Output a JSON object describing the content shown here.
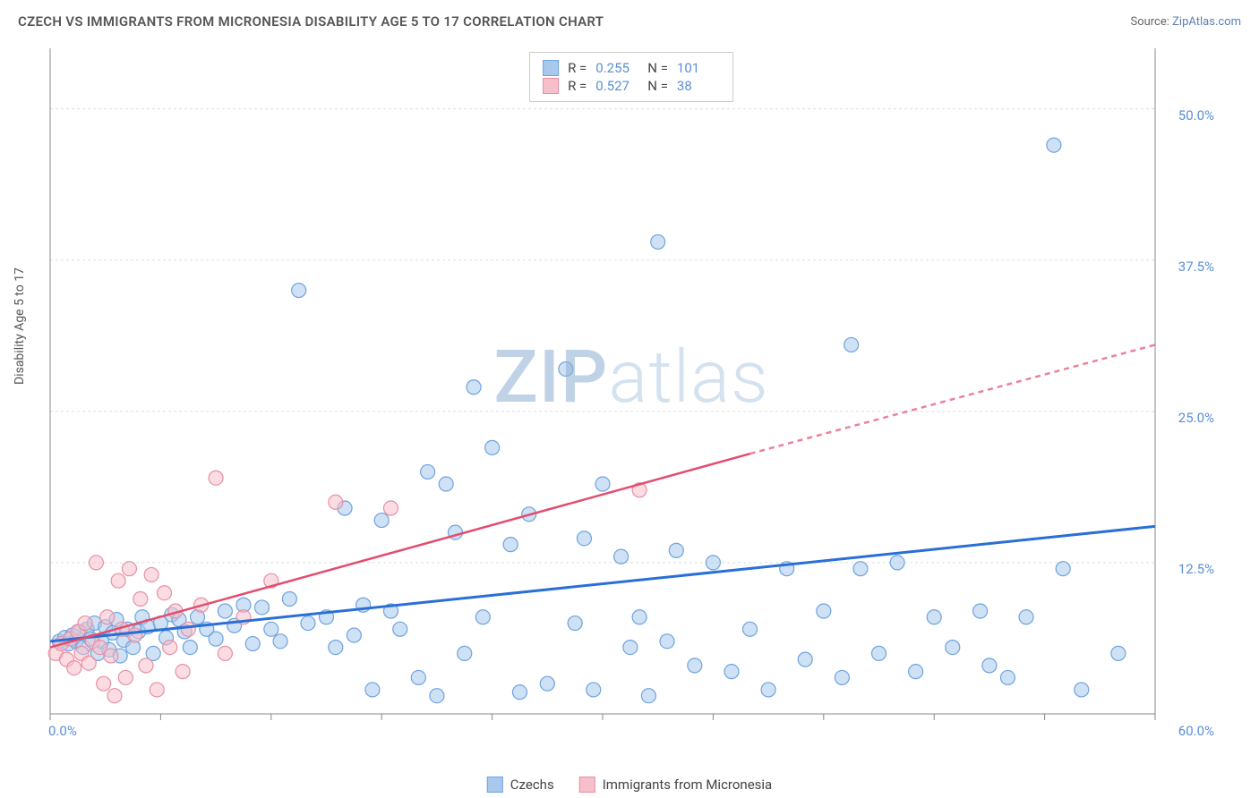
{
  "header": {
    "title": "CZECH VS IMMIGRANTS FROM MICRONESIA DISABILITY AGE 5 TO 17 CORRELATION CHART",
    "source_prefix": "Source: ",
    "source_link": "ZipAtlas.com"
  },
  "watermark": {
    "zip": "ZIP",
    "atlas": "atlas"
  },
  "chart": {
    "type": "scatter",
    "ylabel": "Disability Age 5 to 17",
    "xlim": [
      0,
      60
    ],
    "ylim": [
      0,
      55
    ],
    "x_ticks": [
      0,
      6,
      12,
      18,
      24,
      30,
      36,
      42,
      48,
      54,
      60
    ],
    "x_tick_labels": {
      "0": "0.0%",
      "60": "60.0%"
    },
    "y_gridlines": [
      12.5,
      25.0,
      37.5,
      50.0
    ],
    "y_tick_labels": [
      "12.5%",
      "25.0%",
      "37.5%",
      "50.0%"
    ],
    "background_color": "#ffffff",
    "grid_color": "#dddddd",
    "axis_color": "#888888",
    "marker_radius": 8,
    "marker_opacity": 0.55,
    "series": [
      {
        "name": "Czechs",
        "color_fill": "#a8c8ec",
        "color_stroke": "#6ea3de",
        "r_value": "0.255",
        "n_value": "101",
        "trend": {
          "color": "#2a6fd6",
          "width": 3,
          "x1": 0,
          "y1": 6.0,
          "x2": 60,
          "y2": 15.5
        },
        "points": [
          [
            0.5,
            6.0
          ],
          [
            0.8,
            6.3
          ],
          [
            1.0,
            5.8
          ],
          [
            1.2,
            6.5
          ],
          [
            1.4,
            6.0
          ],
          [
            1.6,
            6.8
          ],
          [
            1.8,
            5.5
          ],
          [
            2.0,
            7.0
          ],
          [
            2.2,
            6.2
          ],
          [
            2.4,
            7.5
          ],
          [
            2.6,
            5.0
          ],
          [
            2.8,
            6.0
          ],
          [
            3.0,
            7.2
          ],
          [
            3.2,
            5.3
          ],
          [
            3.4,
            6.7
          ],
          [
            3.6,
            7.8
          ],
          [
            3.8,
            4.8
          ],
          [
            4.0,
            6.1
          ],
          [
            4.2,
            7.0
          ],
          [
            4.5,
            5.5
          ],
          [
            4.8,
            6.8
          ],
          [
            5.0,
            8.0
          ],
          [
            5.3,
            7.2
          ],
          [
            5.6,
            5.0
          ],
          [
            6.0,
            7.5
          ],
          [
            6.3,
            6.3
          ],
          [
            6.6,
            8.2
          ],
          [
            7.0,
            7.8
          ],
          [
            7.3,
            6.8
          ],
          [
            7.6,
            5.5
          ],
          [
            8.0,
            8.0
          ],
          [
            8.5,
            7.0
          ],
          [
            9.0,
            6.2
          ],
          [
            9.5,
            8.5
          ],
          [
            10.0,
            7.3
          ],
          [
            10.5,
            9.0
          ],
          [
            11.0,
            5.8
          ],
          [
            11.5,
            8.8
          ],
          [
            12.0,
            7.0
          ],
          [
            12.5,
            6.0
          ],
          [
            13.0,
            9.5
          ],
          [
            13.5,
            35.0
          ],
          [
            14.0,
            7.5
          ],
          [
            15.0,
            8.0
          ],
          [
            15.5,
            5.5
          ],
          [
            16.0,
            17.0
          ],
          [
            16.5,
            6.5
          ],
          [
            17.0,
            9.0
          ],
          [
            17.5,
            2.0
          ],
          [
            18.0,
            16.0
          ],
          [
            18.5,
            8.5
          ],
          [
            19.0,
            7.0
          ],
          [
            20.0,
            3.0
          ],
          [
            20.5,
            20.0
          ],
          [
            21.0,
            1.5
          ],
          [
            21.5,
            19.0
          ],
          [
            22.0,
            15.0
          ],
          [
            22.5,
            5.0
          ],
          [
            23.0,
            27.0
          ],
          [
            23.5,
            8.0
          ],
          [
            24.0,
            22.0
          ],
          [
            25.0,
            14.0
          ],
          [
            25.5,
            1.8
          ],
          [
            26.0,
            16.5
          ],
          [
            27.0,
            2.5
          ],
          [
            28.0,
            28.5
          ],
          [
            28.5,
            7.5
          ],
          [
            29.0,
            14.5
          ],
          [
            29.5,
            2.0
          ],
          [
            30.0,
            19.0
          ],
          [
            31.0,
            13.0
          ],
          [
            31.5,
            5.5
          ],
          [
            32.0,
            8.0
          ],
          [
            32.5,
            1.5
          ],
          [
            33.0,
            39.0
          ],
          [
            33.5,
            6.0
          ],
          [
            34.0,
            13.5
          ],
          [
            35.0,
            4.0
          ],
          [
            36.0,
            12.5
          ],
          [
            37.0,
            3.5
          ],
          [
            38.0,
            7.0
          ],
          [
            39.0,
            2.0
          ],
          [
            40.0,
            12.0
          ],
          [
            41.0,
            4.5
          ],
          [
            42.0,
            8.5
          ],
          [
            43.0,
            3.0
          ],
          [
            43.5,
            30.5
          ],
          [
            44.0,
            12.0
          ],
          [
            45.0,
            5.0
          ],
          [
            46.0,
            12.5
          ],
          [
            47.0,
            3.5
          ],
          [
            48.0,
            8.0
          ],
          [
            49.0,
            5.5
          ],
          [
            50.5,
            8.5
          ],
          [
            51.0,
            4.0
          ],
          [
            52.0,
            3.0
          ],
          [
            53.0,
            8.0
          ],
          [
            54.5,
            47.0
          ],
          [
            55.0,
            12.0
          ],
          [
            56.0,
            2.0
          ],
          [
            58.0,
            5.0
          ]
        ]
      },
      {
        "name": "Immigrants from Micronesia",
        "color_fill": "#f6c0cb",
        "color_stroke": "#e88fa3",
        "r_value": "0.527",
        "n_value": "38",
        "trend": {
          "color": "#e34d6e",
          "width": 2.5,
          "solid_x1": 0,
          "solid_y1": 5.5,
          "solid_x2": 38,
          "solid_y2": 21.5,
          "dash_x1": 38,
          "dash_y1": 21.5,
          "dash_x2": 60,
          "dash_y2": 30.5
        },
        "points": [
          [
            0.3,
            5.0
          ],
          [
            0.6,
            5.8
          ],
          [
            0.9,
            4.5
          ],
          [
            1.1,
            6.2
          ],
          [
            1.3,
            3.8
          ],
          [
            1.5,
            6.8
          ],
          [
            1.7,
            5.0
          ],
          [
            1.9,
            7.5
          ],
          [
            2.1,
            4.2
          ],
          [
            2.3,
            6.0
          ],
          [
            2.5,
            12.5
          ],
          [
            2.7,
            5.5
          ],
          [
            2.9,
            2.5
          ],
          [
            3.1,
            8.0
          ],
          [
            3.3,
            4.8
          ],
          [
            3.5,
            1.5
          ],
          [
            3.7,
            11.0
          ],
          [
            3.9,
            7.0
          ],
          [
            4.1,
            3.0
          ],
          [
            4.3,
            12.0
          ],
          [
            4.6,
            6.5
          ],
          [
            4.9,
            9.5
          ],
          [
            5.2,
            4.0
          ],
          [
            5.5,
            11.5
          ],
          [
            5.8,
            2.0
          ],
          [
            6.2,
            10.0
          ],
          [
            6.5,
            5.5
          ],
          [
            6.8,
            8.5
          ],
          [
            7.2,
            3.5
          ],
          [
            7.5,
            7.0
          ],
          [
            8.2,
            9.0
          ],
          [
            9.0,
            19.5
          ],
          [
            9.5,
            5.0
          ],
          [
            10.5,
            8.0
          ],
          [
            12.0,
            11.0
          ],
          [
            15.5,
            17.5
          ],
          [
            18.5,
            17.0
          ],
          [
            32.0,
            18.5
          ]
        ]
      }
    ]
  },
  "bottom_legend": [
    {
      "label": "Czechs",
      "fill": "#a8c8ec",
      "stroke": "#6ea3de"
    },
    {
      "label": "Immigrants from Micronesia",
      "fill": "#f6c0cb",
      "stroke": "#e88fa3"
    }
  ]
}
